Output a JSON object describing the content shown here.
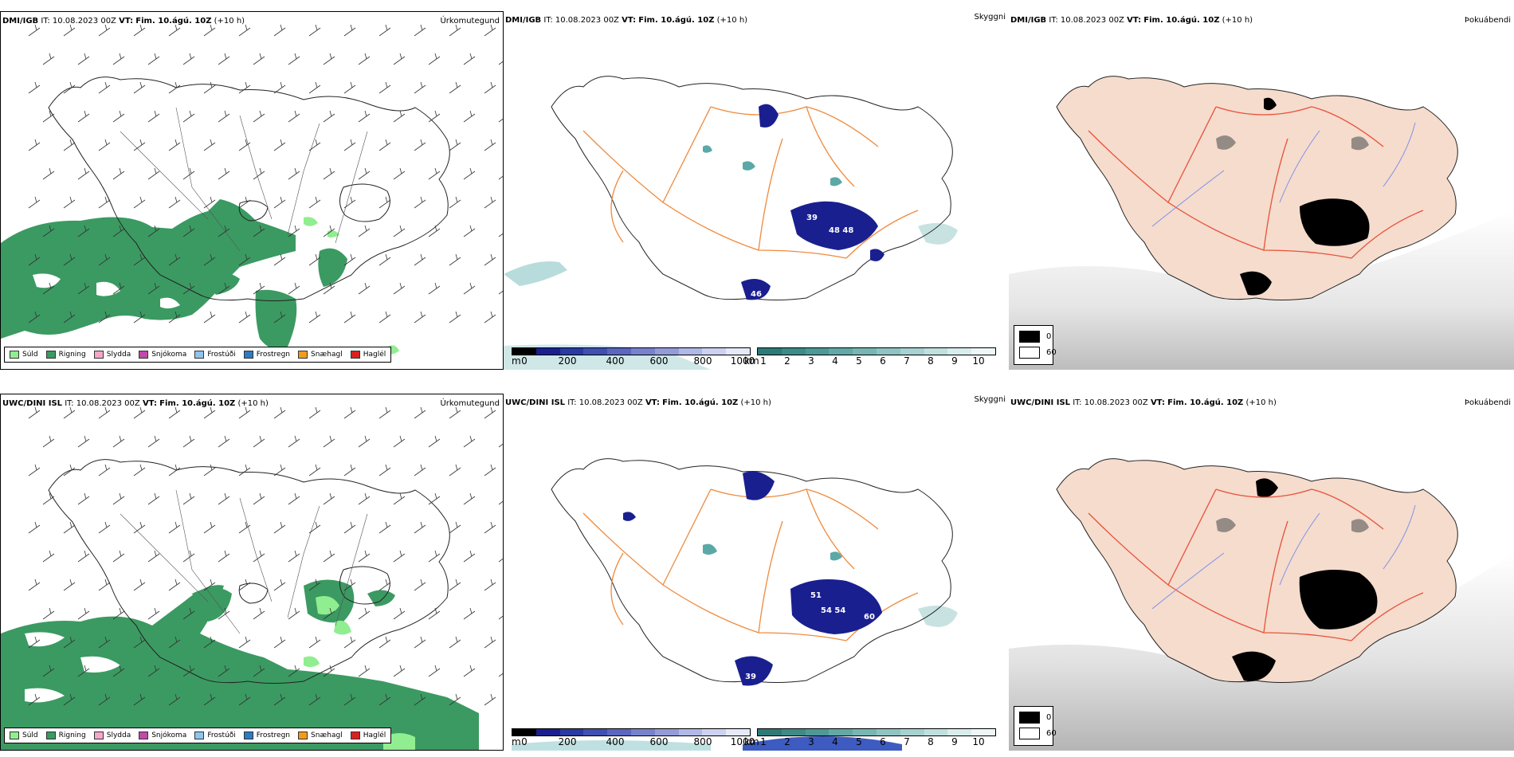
{
  "colors": {
    "rain": "#3b9a62",
    "drizzle": "#90ee90",
    "sleet": "#f4a7c8",
    "snow": "#c04aa6",
    "frost_drizzle": "#8ec5ee",
    "frost_rain": "#2f7bc0",
    "snow_hail": "#f29a1e",
    "hail": "#d92020",
    "mountain_navy": "#1a1f8f",
    "fog_teal": "#5aa9a6",
    "roads": "#f08a3c",
    "land_peach": "#f5dccd",
    "red_roads": "#e8513a",
    "rivers": "#8090e8"
  },
  "rows": [
    {
      "model": "DMI/IGB",
      "it_label": "IT:",
      "it_value": "10.08.2023 00Z",
      "vt_label": "VT:",
      "vt_value": "Fim. 10.ágú. 10Z",
      "lead": "(+10 h)",
      "panels": {
        "precip": {
          "product": "Úrkomutegund"
        },
        "visibility": {
          "product": "Skyggni",
          "labels": [
            "39",
            "48 48",
            "46"
          ]
        },
        "fog": {
          "product": "Þokuábendi"
        }
      }
    },
    {
      "model": "UWC/DINI ISL",
      "it_label": "IT:",
      "it_value": "10.08.2023 00Z",
      "vt_label": "VT:",
      "vt_value": "Fim. 10.ágú. 10Z",
      "lead": "(+10 h)",
      "panels": {
        "precip": {
          "product": "Úrkomutegund"
        },
        "visibility": {
          "product": "Skyggni",
          "labels": [
            "51",
            "54 54",
            "60",
            "39"
          ]
        },
        "fog": {
          "product": "Þokuábendi"
        }
      }
    }
  ],
  "precip_legend": [
    {
      "label": "Súld",
      "icon": "drizzle-swatch"
    },
    {
      "label": "Rigning",
      "icon": "rain-swatch"
    },
    {
      "label": "Slydda",
      "icon": "sleet-swatch"
    },
    {
      "label": "Snjókoma",
      "icon": "snow-swatch"
    },
    {
      "label": "Frostúði",
      "icon": "frost-drizzle-swatch"
    },
    {
      "label": "Frostregn",
      "icon": "frost-rain-swatch"
    },
    {
      "label": "Snæhagl",
      "icon": "snow-hail-swatch"
    },
    {
      "label": "Haglél",
      "icon": "hail-swatch"
    }
  ],
  "height_bar": {
    "unit": "m",
    "ticks": [
      "0",
      "200",
      "400",
      "600",
      "800",
      "1000"
    ]
  },
  "distance_bar": {
    "unit": "km",
    "ticks": [
      "1",
      "2",
      "3",
      "4",
      "5",
      "6",
      "7",
      "8",
      "9",
      "10"
    ]
  },
  "fog_legend": {
    "values": [
      "0",
      "60"
    ]
  }
}
